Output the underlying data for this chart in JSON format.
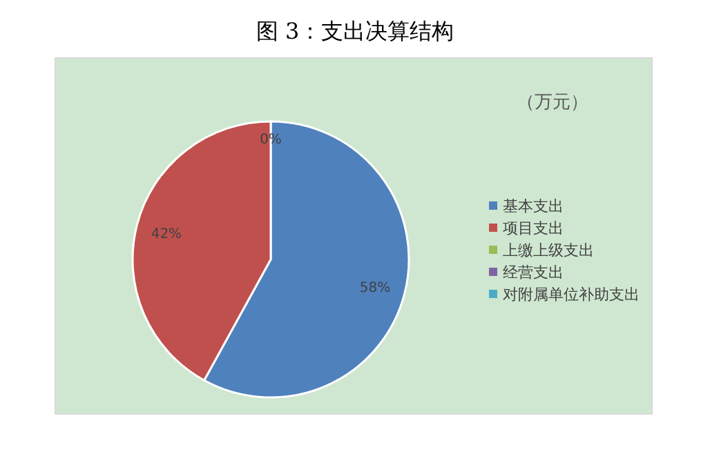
{
  "chart_data": {
    "type": "pie",
    "title": "图 3：支出决算结构",
    "annotations": [
      "（万元）"
    ],
    "categories": [
      "基本支出",
      "项目支出",
      "上缴上级支出",
      "经营支出",
      "对附属单位补助支出"
    ],
    "values": [
      58,
      42,
      0,
      0,
      0
    ],
    "colors": [
      "#4f81bd",
      "#c0504d",
      "#9bbb59",
      "#8064a2",
      "#4bacc6"
    ],
    "value_labels": [
      "58%",
      "42%",
      "0%",
      null,
      null
    ],
    "legend": "right"
  }
}
